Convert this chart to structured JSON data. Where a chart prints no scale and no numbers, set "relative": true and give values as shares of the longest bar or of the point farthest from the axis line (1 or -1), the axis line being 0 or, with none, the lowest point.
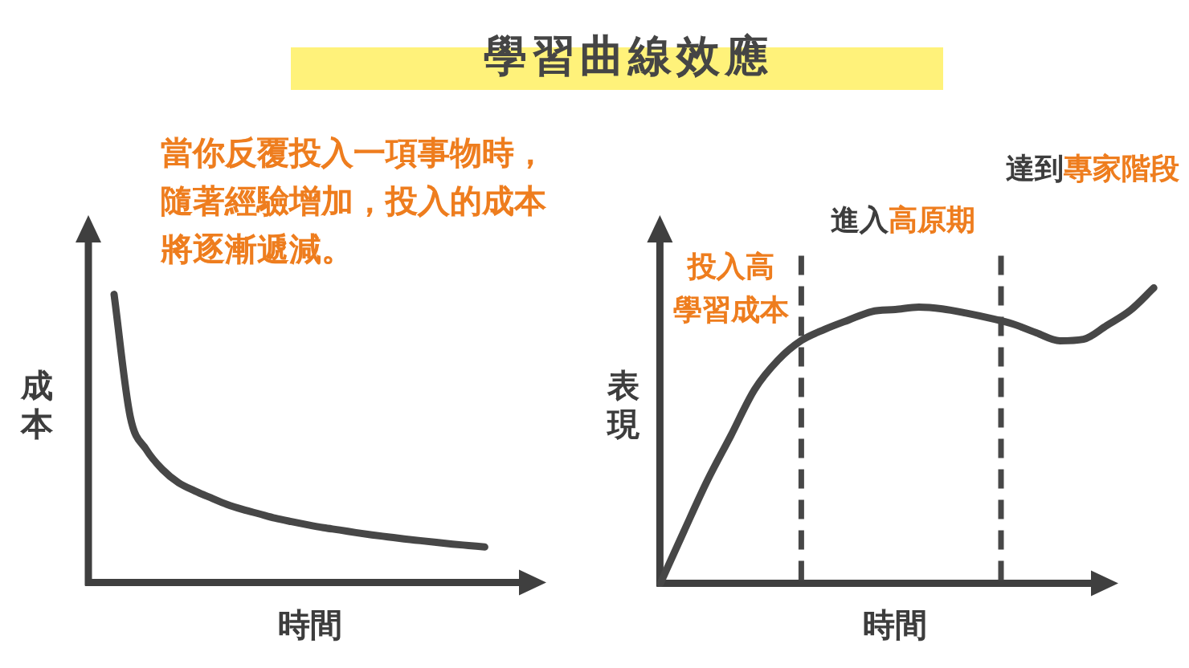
{
  "chart_data": [
    {
      "type": "line",
      "title": "學習曲線效應",
      "relative": true,
      "xlabel": "時間",
      "ylabel": "成本",
      "categories": [
        null,
        null,
        null,
        null,
        null,
        null,
        null,
        null,
        null,
        null,
        null,
        null,
        null,
        null,
        null,
        null,
        null,
        null,
        null,
        null,
        null,
        null,
        null,
        null
      ],
      "series": [
        {
          "color": "#474747",
          "values": [
            1.0,
            0.576,
            0.461,
            0.392,
            0.346,
            0.318,
            0.294,
            0.271,
            0.253,
            0.238,
            0.223,
            0.211,
            0.2,
            0.19,
            0.182,
            0.173,
            0.165,
            0.158,
            0.151,
            0.145,
            0.139,
            0.133,
            0.128,
            0.123
          ]
        }
      ],
      "annotations": [
        "當你反覆投入一項事物時，隨著經驗增加，投入的成本將逐漸遞減。"
      ]
    },
    {
      "type": "line",
      "relative": true,
      "xlabel": "時間",
      "ylabel": "表現",
      "categories": [
        null,
        null,
        null,
        null,
        null,
        null,
        null,
        null,
        null,
        null,
        null,
        null,
        null,
        null,
        null,
        null,
        null,
        null,
        null,
        null,
        null,
        null
      ],
      "series": [
        {
          "color": "#474747",
          "values": [
            0,
            0.176,
            0.348,
            0.5,
            0.655,
            0.755,
            0.822,
            0.86,
            0.891,
            0.92,
            0.927,
            0.935,
            0.929,
            0.915,
            0.898,
            0.878,
            0.848,
            0.821,
            0.826,
            0.873,
            0.924,
            1.0
          ]
        }
      ],
      "annotations": [
        "投入高學習成本",
        "進入高原期",
        "達到專家階段"
      ]
    }
  ]
}
